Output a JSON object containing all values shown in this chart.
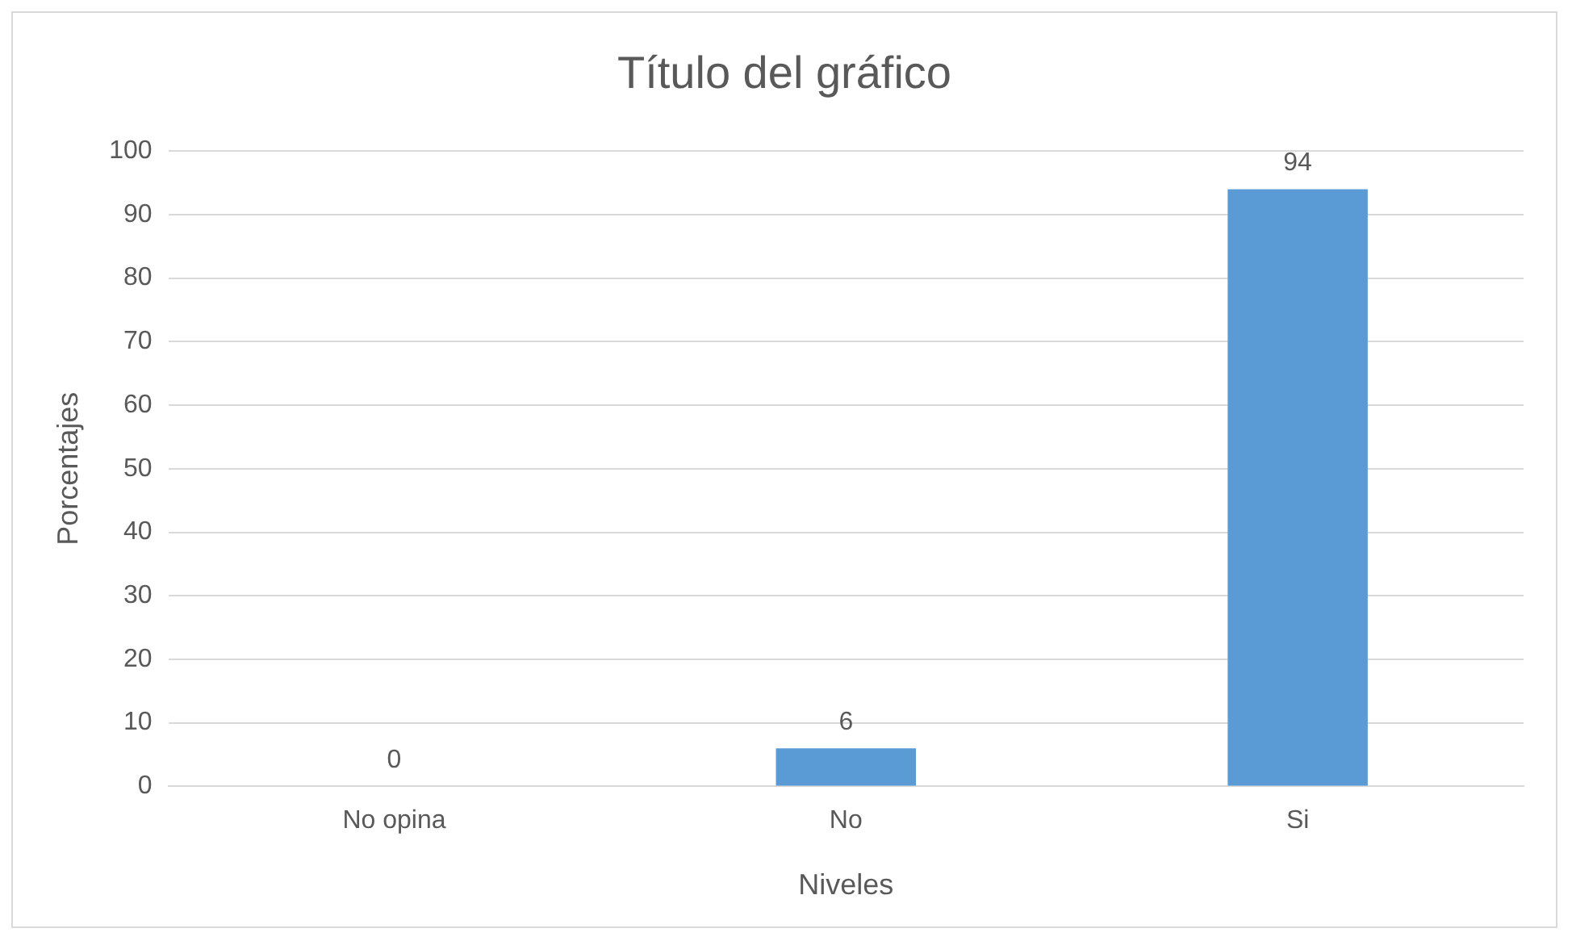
{
  "chart_data": {
    "type": "bar",
    "title": "Título del gráfico",
    "xlabel": "Niveles",
    "ylabel": "Porcentajes",
    "categories": [
      "No opina",
      "No",
      "Si"
    ],
    "values": [
      0,
      6,
      94
    ],
    "color": "#5b9bd5",
    "ylim": [
      0,
      100
    ],
    "yticks": [
      0,
      10,
      20,
      30,
      40,
      50,
      60,
      70,
      80,
      90,
      100
    ],
    "grid": "y",
    "data_labels": true,
    "legend": false
  }
}
